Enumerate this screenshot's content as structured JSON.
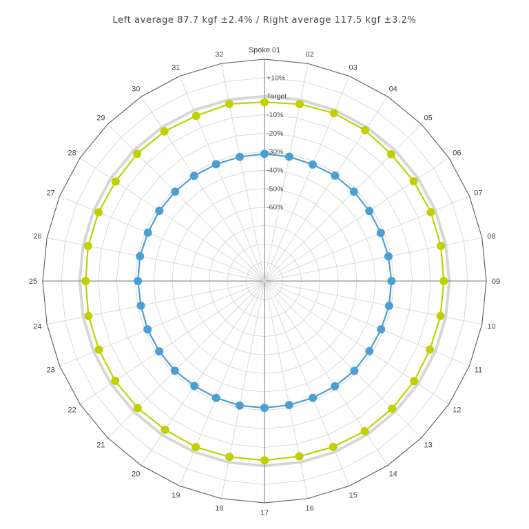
{
  "chart_data": {
    "type": "radar",
    "title": "Left average 87.7 kgf ±2.4% / Right average 117.5 kgf ±3.2%",
    "spokes": [
      "Spoke 01",
      "02",
      "03",
      "04",
      "05",
      "06",
      "07",
      "08",
      "09",
      "10",
      "11",
      "12",
      "13",
      "14",
      "15",
      "16",
      "17",
      "18",
      "19",
      "20",
      "21",
      "22",
      "23",
      "24",
      "25",
      "26",
      "27",
      "28",
      "29",
      "30",
      "31",
      "32"
    ],
    "ring_labels": [
      "+10%",
      "Target",
      "-10%",
      "-20%",
      "-30%",
      "-40%",
      "-50%",
      "-60%"
    ],
    "ring_values": [
      10,
      0,
      -10,
      -20,
      -30,
      -40,
      -50,
      -60
    ],
    "r_range": [
      -100,
      20
    ],
    "series": [
      {
        "color": "#bfd200",
        "values": [
          -3.2,
          -2.4,
          -1.7,
          -1.9,
          -3.0,
          -2.9,
          -2.6,
          -2.7,
          -3.0,
          -2.9,
          -3.1,
          -2.6,
          -2.4,
          -2.3,
          -2.9,
          -3.3,
          -3.0,
          -3.0,
          -2.8,
          -3.2,
          -2.9,
          -2.8,
          -3.0,
          -2.9,
          -3.2,
          -2.7,
          -2.8,
          -3.1,
          -2.6,
          -2.6,
          -3.3,
          -2.3
        ]
      },
      {
        "color": "#4b9fd5",
        "values": [
          -31.2,
          -31.4,
          -31.8,
          -31.4,
          -31.6,
          -31.8,
          -31.9,
          -31.6,
          -31.3,
          -31.3,
          -31.7,
          -31.8,
          -31.3,
          -31.5,
          -31.6,
          -31.6,
          -31.4,
          -31.3,
          -31.6,
          -31.7,
          -31.4,
          -31.5,
          -31.5,
          -31.8,
          -31.5,
          -31.3,
          -31.7,
          -31.6,
          -31.6,
          -31.5,
          -31.6,
          -31.5
        ]
      }
    ],
    "colors": {
      "axis": "#666666",
      "grid": "#d9d9d9",
      "target_ring": "#d6d6d6"
    }
  }
}
